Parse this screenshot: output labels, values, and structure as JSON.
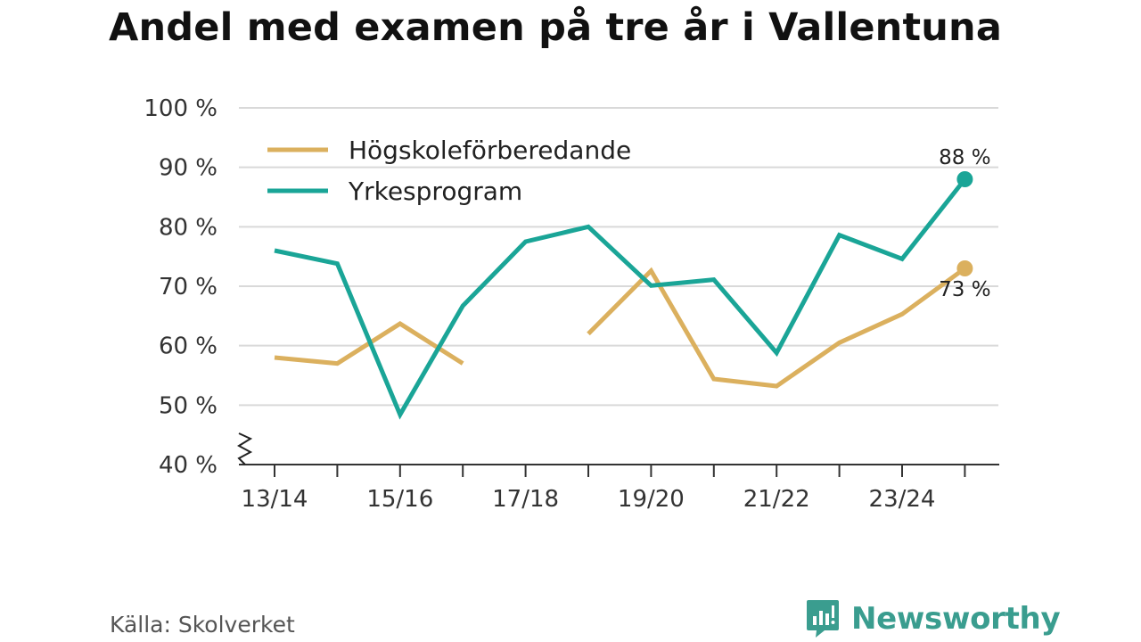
{
  "title": "Andel med examen på tre år i Vallentuna",
  "source": "Källa: Skolverket",
  "brand": {
    "name": "Newsworthy",
    "color": "#3a9d8f"
  },
  "chart_data": {
    "type": "line",
    "x": [
      "13/14",
      "14/15",
      "15/16",
      "16/17",
      "17/18",
      "18/19",
      "19/20",
      "20/21",
      "21/22",
      "22/23",
      "23/24",
      "24/25"
    ],
    "x_tick_labels": [
      "13/14",
      "15/16",
      "17/18",
      "19/20",
      "21/22",
      "23/24"
    ],
    "y_ticks": [
      "40 %",
      "50 %",
      "60 %",
      "70 %",
      "80 %",
      "90 %",
      "100 %"
    ],
    "ylim": [
      40,
      100
    ],
    "y_axis_break": true,
    "grid": "horizontal",
    "legend_position": "top-left",
    "series": [
      {
        "name": "Högskoleförberedande",
        "color": "#dbb05e",
        "values": [
          58,
          57,
          63.7,
          57,
          null,
          62,
          72.6,
          54.4,
          53.2,
          60.5,
          65.3,
          73
        ],
        "end_label": "73 %"
      },
      {
        "name": "Yrkesprogram",
        "color": "#1aa597",
        "values": [
          76,
          73.8,
          48.4,
          66.7,
          77.5,
          80,
          70.1,
          71.1,
          58.8,
          78.6,
          74.6,
          88
        ],
        "end_label": "88 %"
      }
    ]
  }
}
